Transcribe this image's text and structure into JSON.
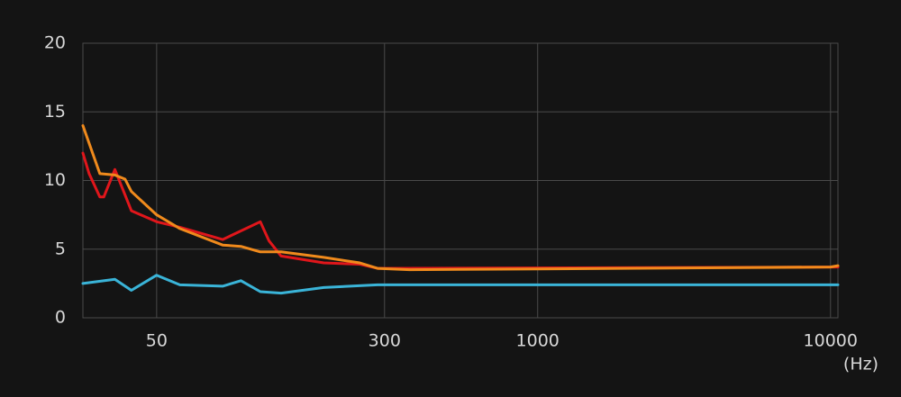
{
  "chart_data": {
    "type": "line",
    "x_label": "(Hz)",
    "log_x": true,
    "grid": true,
    "xlim": [
      28,
      10600
    ],
    "ylim": [
      0,
      20
    ],
    "xticks": [
      50,
      300,
      1000,
      10000
    ],
    "yticks": [
      0,
      5,
      10,
      15,
      20
    ],
    "series": [
      {
        "color": "#e0161b",
        "x": [
          28,
          29.4,
          32,
          33,
          36,
          41,
          50,
          60,
          84,
          113,
          121,
          133,
          186,
          247,
          284,
          10600
        ],
        "values": [
          12,
          10.5,
          8.8,
          8.8,
          10.8,
          7.8,
          7,
          6.6,
          5.7,
          7,
          5.6,
          4.5,
          4,
          3.9,
          3.6,
          3.7
        ]
      },
      {
        "color": "#f08a1c",
        "x": [
          28,
          32,
          36,
          39,
          41,
          50,
          60,
          84,
          97,
          113,
          133,
          186,
          247,
          284,
          365,
          873,
          10000,
          10600
        ],
        "values": [
          14,
          10.5,
          10.4,
          10.1,
          9.2,
          7.5,
          6.5,
          5.3,
          5.2,
          4.8,
          4.8,
          4.4,
          4.0,
          3.6,
          3.5,
          3.55,
          3.7,
          3.8
        ]
      },
      {
        "color": "#3ab4d8",
        "x": [
          28,
          36,
          41,
          50,
          60,
          84,
          97,
          113,
          133,
          186,
          284,
          10600
        ],
        "values": [
          2.5,
          2.8,
          2.0,
          3.1,
          2.4,
          2.3,
          2.7,
          1.9,
          1.8,
          2.2,
          2.4,
          2.4
        ]
      }
    ]
  }
}
